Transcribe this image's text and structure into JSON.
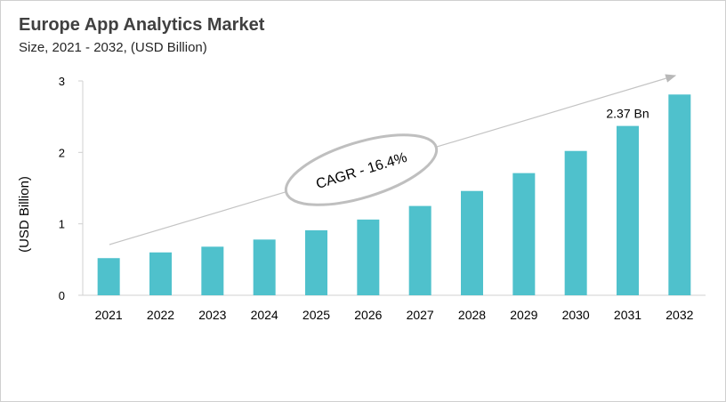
{
  "chart_data": {
    "type": "bar",
    "title": "Europe App Analytics Market",
    "subtitle": "Size, 2021 - 2032, (USD Billion)",
    "xlabel": "",
    "ylabel": "(USD Billion)",
    "categories": [
      "2021",
      "2022",
      "2023",
      "2024",
      "2025",
      "2026",
      "2027",
      "2028",
      "2029",
      "2030",
      "2031",
      "2032"
    ],
    "values": [
      0.52,
      0.6,
      0.68,
      0.78,
      0.91,
      1.06,
      1.25,
      1.46,
      1.71,
      2.02,
      2.37,
      2.81
    ],
    "ylim": [
      0,
      3
    ],
    "yticks": [
      0,
      1,
      2,
      3
    ],
    "grid": false,
    "bar_color": "#4FC1CC",
    "annotations": {
      "cagr": "CAGR - 16.4%",
      "value_label": "2.37 Bn",
      "value_label_category": "2031"
    }
  }
}
